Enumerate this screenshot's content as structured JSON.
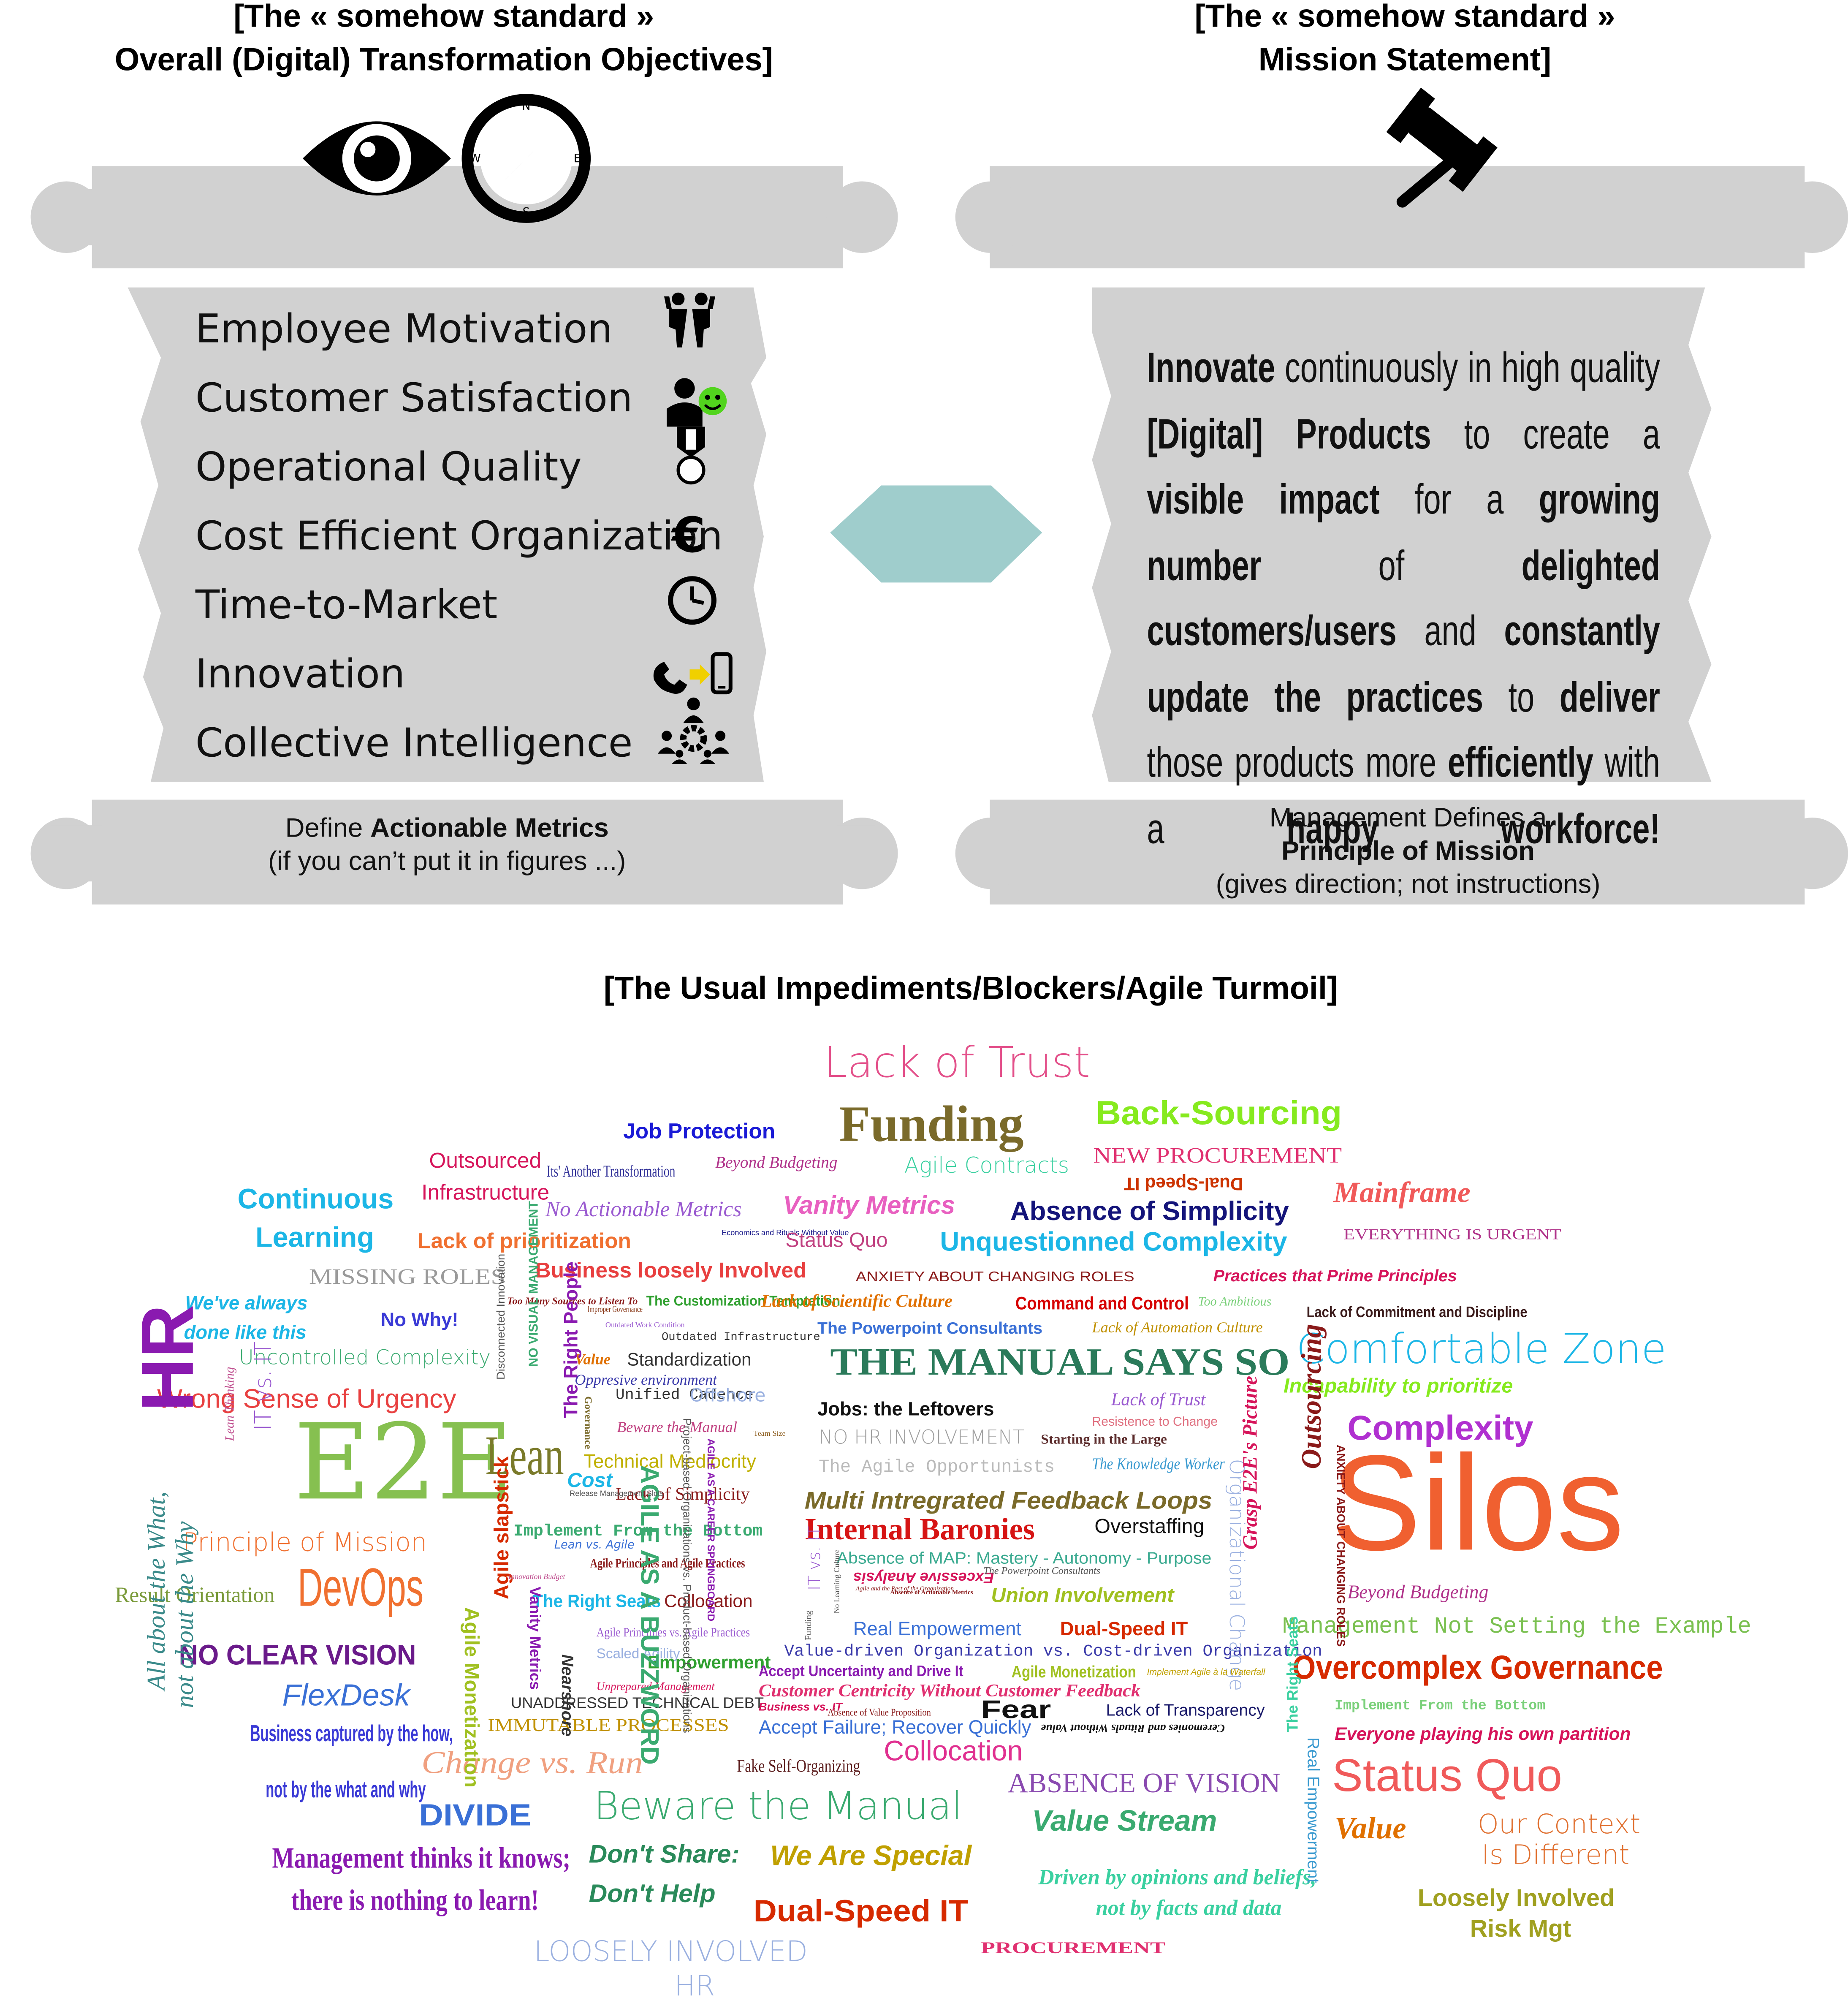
{
  "left_panel": {
    "title_line1": "[The «  somehow standard  »",
    "title_line2": "Overall (Digital) Transformation Objectives]",
    "objectives": [
      {
        "label": "Employee Motivation",
        "icon": "two-people-icon"
      },
      {
        "label": "Customer Satisfaction",
        "icon": "customer-smiley-icon"
      },
      {
        "label": "Operational Quality",
        "icon": "medal-icon"
      },
      {
        "label": "Cost Efficient Organization",
        "icon": "euro-icon"
      },
      {
        "label": "Time-to-Market",
        "icon": "clock-icon"
      },
      {
        "label": "Innovation",
        "icon": "phone-to-mobile-icon"
      },
      {
        "label": "Collective Intelligence",
        "icon": "team-gear-icon"
      }
    ],
    "footer_pre": "Define ",
    "footer_bold": "Actionable Metrics",
    "footer_line2": "(if you can’t put it in figures ...)"
  },
  "right_panel": {
    "title_line1": "[The «  somehow standard  »",
    "title_line2": "Mission Statement]",
    "mission_parts": [
      {
        "t": "Innovate",
        "b": true
      },
      {
        "t": " continuously in high quality ",
        "b": false
      },
      {
        "t": "[Digital] Products",
        "b": true
      },
      {
        "t": " to create a ",
        "b": false
      },
      {
        "t": "visible impact",
        "b": true
      },
      {
        "t": " for a ",
        "b": false
      },
      {
        "t": "growing number",
        "b": true
      },
      {
        "t": " of ",
        "b": false
      },
      {
        "t": "delighted customers/users",
        "b": true
      },
      {
        "t": " and ",
        "b": false
      },
      {
        "t": "constantly update the practices",
        "b": true
      },
      {
        "t": " to ",
        "b": false
      },
      {
        "t": "deliver",
        "b": true
      },
      {
        "t": " those products more ",
        "b": false
      },
      {
        "t": "efficiently",
        "b": true
      },
      {
        "t": " with a ",
        "b": false
      },
      {
        "t": "happy workforce!",
        "b": true
      }
    ],
    "footer_line1": "Management Defines a",
    "footer_bold": "Principle of Mission",
    "footer_line3": "(gives direction; not instructions)"
  },
  "header_icons": [
    "eye-icon",
    "compass-icon",
    "gavel-icon"
  ],
  "connector_color": "#9fcdcc",
  "scroll_color": "#d1d1d1",
  "cloud": {
    "title": "[The Usual Impediments/Blockers/Agile Turmoil]",
    "words": [
      {
        "t": "Lack of Trust",
        "c": "#e3508a"
      },
      {
        "t": "Job Protection",
        "c": "#1a1ad6"
      },
      {
        "t": "Funding",
        "c": "#7a6a2a"
      },
      {
        "t": "Back-Sourcing",
        "c": "#86ea1e"
      },
      {
        "t": "Outsourced",
        "c": "#d6145a"
      },
      {
        "t": "Infrastructure",
        "c": "#d6145a"
      },
      {
        "t": "Its' Another Transformation",
        "c": "#333399"
      },
      {
        "t": "Beyond Budgeting",
        "c": "#b0338a"
      },
      {
        "t": "Agile Contracts",
        "c": "#3ad0a0"
      },
      {
        "t": "NEW PROCUREMENT",
        "c": "#e03070"
      },
      {
        "t": "Dual-Speed IT",
        "c": "#cc3300"
      },
      {
        "t": "Continuous",
        "c": "#1cb6e6"
      },
      {
        "t": "Learning",
        "c": "#1cb6e6"
      },
      {
        "t": "No Actionable Metrics",
        "c": "#9a5ad0"
      },
      {
        "t": "Vanity Metrics",
        "c": "#e860c0"
      },
      {
        "t": "Absence of Simplicity",
        "c": "#14147a"
      },
      {
        "t": "Mainframe",
        "c": "#f05a5a"
      },
      {
        "t": "Lack of prioritization",
        "c": "#f07030"
      },
      {
        "t": "Economics and Rituals Without Value",
        "c": "#1a1a8a"
      },
      {
        "t": "Status Quo",
        "c": "#c04080"
      },
      {
        "t": "Unquestionned Complexity",
        "c": "#1cb6e6"
      },
      {
        "t": "EVERYTHING IS URGENT",
        "c": "#b0338a"
      },
      {
        "t": "MISSING ROLES",
        "c": "#9a9a9a"
      },
      {
        "t": "Business loosely Involved",
        "c": "#e84040"
      },
      {
        "t": "ANXIETY ABOUT CHANGING ROLES",
        "c": "#8a1a1a"
      },
      {
        "t": "Practices that Prime Principles",
        "c": "#d6145a"
      },
      {
        "t": "We've always",
        "c": "#1cb6e6"
      },
      {
        "t": "done like this",
        "c": "#1cb6e6"
      },
      {
        "t": "No Why!",
        "c": "#3a3ad6"
      },
      {
        "t": "Too Many Sources to Listen To",
        "c": "#8a1a1a"
      },
      {
        "t": "Improper Governance",
        "c": "#8a3a1a"
      },
      {
        "t": "The Customization Temptation",
        "c": "#30a030"
      },
      {
        "t": "Lack of Scientific Culture",
        "c": "#e07000"
      },
      {
        "t": "Command and Control",
        "c": "#d60000"
      },
      {
        "t": "Too Ambitious",
        "c": "#7ad07a"
      },
      {
        "t": "Lack of Commitment and Discipline",
        "c": "#3a1a1a"
      },
      {
        "t": "Uncontrolled Complexity",
        "c": "#3aaa70"
      },
      {
        "t": "Outdated Work Condition",
        "c": "#9a5ad0"
      },
      {
        "t": "Outdated Infrastructure",
        "c": "#333333"
      },
      {
        "t": "The Powerpoint Consultants",
        "c": "#3a70d6"
      },
      {
        "t": "Lack of Automation Culture",
        "c": "#c09000"
      },
      {
        "t": "Comfortable Zone",
        "c": "#1cb6e6"
      },
      {
        "t": "Wrong Sense of Urgency",
        "c": "#e84040"
      },
      {
        "t": "Value",
        "c": "#e07000"
      },
      {
        "t": "Standardization",
        "c": "#333333"
      },
      {
        "t": "Oppresive environment",
        "c": "#3a3aaa"
      },
      {
        "t": "THE MANUAL SAYS SO",
        "c": "#2a7a5a"
      },
      {
        "t": "Incapability to prioritize",
        "c": "#86ea1e"
      },
      {
        "t": "Unified Cadence",
        "c": "#333333"
      },
      {
        "t": "Offshore",
        "c": "#9ab0e0"
      },
      {
        "t": "Jobs: the Leftovers",
        "c": "#111111"
      },
      {
        "t": "Lack of Trust",
        "c": "#9a5ad0"
      },
      {
        "t": "Complexity",
        "c": "#b030d0"
      },
      {
        "t": "HR",
        "c": "#8a1ab0"
      },
      {
        "t": "Beware the Manual",
        "c": "#c04080"
      },
      {
        "t": "Resistence to Change",
        "c": "#e07080"
      },
      {
        "t": "Team Size",
        "c": "#8a5a1a"
      },
      {
        "t": "E2E",
        "c": "#86c050"
      },
      {
        "t": "NO HR INVOLVEMENT",
        "c": "#a0a0a0"
      },
      {
        "t": "Starting in the Large",
        "c": "#5a2a2a"
      },
      {
        "t": "Silos",
        "c": "#f06030"
      },
      {
        "t": "IT vs. IT",
        "c": "#9a5ad0"
      },
      {
        "t": "Lean Thinking",
        "c": "#c05090"
      },
      {
        "t": "Lean",
        "c": "#7a7a2a"
      },
      {
        "t": "Technical Mediocrity",
        "c": "#c0b000"
      },
      {
        "t": "The Agile Opportunists",
        "c": "#bababa"
      },
      {
        "t": "The Knowledge Worker",
        "c": "#3a9ad0"
      },
      {
        "t": "Cost",
        "c": "#1cb6e6"
      },
      {
        "t": "Lack of Simplicity",
        "c": "#8a1a1a"
      },
      {
        "t": "Multi Intregrated Feedback Loops",
        "c": "#7a6a2a"
      },
      {
        "t": "Principle of Mission",
        "c": "#f07030"
      },
      {
        "t": "Internal Baronies",
        "c": "#d61414"
      },
      {
        "t": "Overstaffing",
        "c": "#111111"
      },
      {
        "t": "Implement From the Bottom",
        "c": "#3aaa70"
      },
      {
        "t": "Beyond Budgeting",
        "c": "#b0338a"
      },
      {
        "t": "Absence of MAP: Mastery - Autonomy - Purpose",
        "c": "#3aaa90"
      },
      {
        "t": "DevOps",
        "c": "#f07030"
      },
      {
        "t": "Result Orientation",
        "c": "#7a9a3a"
      },
      {
        "t": "Excessive Analysis",
        "c": "#d6145a"
      },
      {
        "t": "Union Involvement",
        "c": "#a0c020"
      },
      {
        "t": "Agile Principles and Agile Practices",
        "c": "#8a1a1a"
      },
      {
        "t": "The Right Seats",
        "c": "#1cb6e6"
      },
      {
        "t": "Collocation",
        "c": "#8a1a1a"
      },
      {
        "t": "Management Not Setting the Example",
        "c": "#7ac050"
      },
      {
        "t": "Real Empowerment",
        "c": "#3a70d6"
      },
      {
        "t": "Dual-Speed IT",
        "c": "#d62a00"
      },
      {
        "t": "NO CLEAR VISION",
        "c": "#6a1a8a"
      },
      {
        "t": "Agile Principles vs. Agile Practices",
        "c": "#9a5ad0"
      },
      {
        "t": "Scaled Agility",
        "c": "#9ab0e0"
      },
      {
        "t": "Empowerment",
        "c": "#30a030"
      },
      {
        "t": "Accept Uncertainty and Drive It",
        "c": "#8a1ab0"
      },
      {
        "t": "Agile Monetization",
        "c": "#a0c020"
      },
      {
        "t": "Overcomplex Governance",
        "c": "#d62a00"
      },
      {
        "t": "FlexDesk",
        "c": "#3a70d6"
      },
      {
        "t": "Unprepared Management",
        "c": "#d6145a"
      },
      {
        "t": "UNADDRESSED TECHNICAL DEBT",
        "c": "#333333"
      },
      {
        "t": "Value-driven Organization vs. Cost-driven Organization",
        "c": "#3a3aaa"
      },
      {
        "t": "Implement From the Bottom",
        "c": "#7ad07a"
      },
      {
        "t": "Customer Centricity Without Customer Feedback",
        "c": "#e03070"
      },
      {
        "t": "Fear",
        "c": "#111111"
      },
      {
        "t": "Lack of Transparency",
        "c": "#1a1a6a"
      },
      {
        "t": "Business captured by the how,",
        "c": "#3a3ad6"
      },
      {
        "t": "not by the what and why",
        "c": "#3a3ad6"
      },
      {
        "t": "IMMUTABLE PROCESSES",
        "c": "#c09000"
      },
      {
        "t": "Accept Failure; Recover Quickly",
        "c": "#3a70d6"
      },
      {
        "t": "Ceremonies and Rituals Without Value",
        "c": "#111111"
      },
      {
        "t": "Everyone playing his own partition",
        "c": "#d6145a"
      },
      {
        "t": "Collocation",
        "c": "#e03090"
      },
      {
        "t": "Fake Self-Organizing",
        "c": "#5a1a1a"
      },
      {
        "t": "Change vs. Run",
        "c": "#f0a080"
      },
      {
        "t": "ABSENCE OF VISION",
        "c": "#8a4ab0"
      },
      {
        "t": "Status Quo",
        "c": "#f05a5a"
      },
      {
        "t": "DIVIDE",
        "c": "#3a70d6"
      },
      {
        "t": "Beware the Manual",
        "c": "#3aaa70"
      },
      {
        "t": "Value Stream",
        "c": "#3aaa70"
      },
      {
        "t": "Value",
        "c": "#e07000"
      },
      {
        "t": "Our Context",
        "c": "#e07030"
      },
      {
        "t": "Is Different",
        "c": "#e07030"
      },
      {
        "t": "All about the What,",
        "c": "#3a8a8a"
      },
      {
        "t": "not about the Why",
        "c": "#3a8a8a"
      },
      {
        "t": "Management thinks it knows;",
        "c": "#8a1ab0"
      },
      {
        "t": "there is nothing to learn!",
        "c": "#8a1ab0"
      },
      {
        "t": "Don't Share:",
        "c": "#2a8a5a"
      },
      {
        "t": "Don't Help",
        "c": "#2a8a5a"
      },
      {
        "t": "We Are Special",
        "c": "#c0a000"
      },
      {
        "t": "Driven by opinions and beliefs,",
        "c": "#3ad0a0"
      },
      {
        "t": "not by facts and data",
        "c": "#3ad0a0"
      },
      {
        "t": "Loosely Involved",
        "c": "#a0a020"
      },
      {
        "t": "Risk Mgt",
        "c": "#a0a020"
      },
      {
        "t": "Dual-Speed IT",
        "c": "#d62a00"
      },
      {
        "t": "PROCUREMENT",
        "c": "#e03070"
      },
      {
        "t": "LOOSELY INVOLVED",
        "c": "#9ab0e0"
      },
      {
        "t": "HR",
        "c": "#9ab0e0"
      },
      {
        "t": "Disconnected Innovation",
        "c": "#555555"
      },
      {
        "t": "NO VISUAL MANAGEMENT",
        "c": "#3aaa70"
      },
      {
        "t": "The Right People",
        "c": "#8a1ab0"
      },
      {
        "t": "AGILE AS A BUZZWORD",
        "c": "#3aaa70"
      },
      {
        "t": "Project-based Organizations vs. Product-based Organizations",
        "c": "#555555"
      },
      {
        "t": "AGILE AS A CAREER SPRINGBOARD",
        "c": "#8a1ab0"
      },
      {
        "t": "Organizational Change",
        "c": "#9ab0e0"
      },
      {
        "t": "Outsourcing",
        "c": "#8a1a1a"
      },
      {
        "t": "ANXIETY ABOUT CHANGING ROLES",
        "c": "#8a1a1a"
      },
      {
        "t": "Grasp E2E's Picture",
        "c": "#d6145a"
      },
      {
        "t": "The Right Seats",
        "c": "#3ad0a0"
      },
      {
        "t": "Real Empowerment",
        "c": "#3a9ad0"
      },
      {
        "t": "Agile slapstick",
        "c": "#d62a00"
      },
      {
        "t": "Agile Monetization",
        "c": "#a0c020"
      },
      {
        "t": "Vanity Metrics",
        "c": "#8a1ab0"
      },
      {
        "t": "Nearshore",
        "c": "#333333"
      },
      {
        "t": "Governance",
        "c": "#7a6a2a"
      },
      {
        "t": "IT vs. IT",
        "c": "#9a5ad0"
      },
      {
        "t": "No Learning Culture",
        "c": "#555555"
      },
      {
        "t": "Implement Agile à la Waterfall",
        "c": "#c0a000"
      },
      {
        "t": "Absence of Value Proposition",
        "c": "#8a1a1a"
      },
      {
        "t": "Business vs. IT",
        "c": "#d6145a"
      },
      {
        "t": "The Powerpoint Consultants",
        "c": "#555555"
      },
      {
        "t": "Agile and the Rest of the Organization",
        "c": "#8a1a1a"
      },
      {
        "t": "Absence of Actionable Metrics",
        "c": "#8a1a1a"
      },
      {
        "t": "Release Management Slots",
        "c": "#555555"
      },
      {
        "t": "Lean vs. Agile",
        "c": "#3a70d6"
      },
      {
        "t": "Funding",
        "c": "#555555"
      },
      {
        "t": "Innovation Budget",
        "c": "#c05090"
      }
    ]
  }
}
